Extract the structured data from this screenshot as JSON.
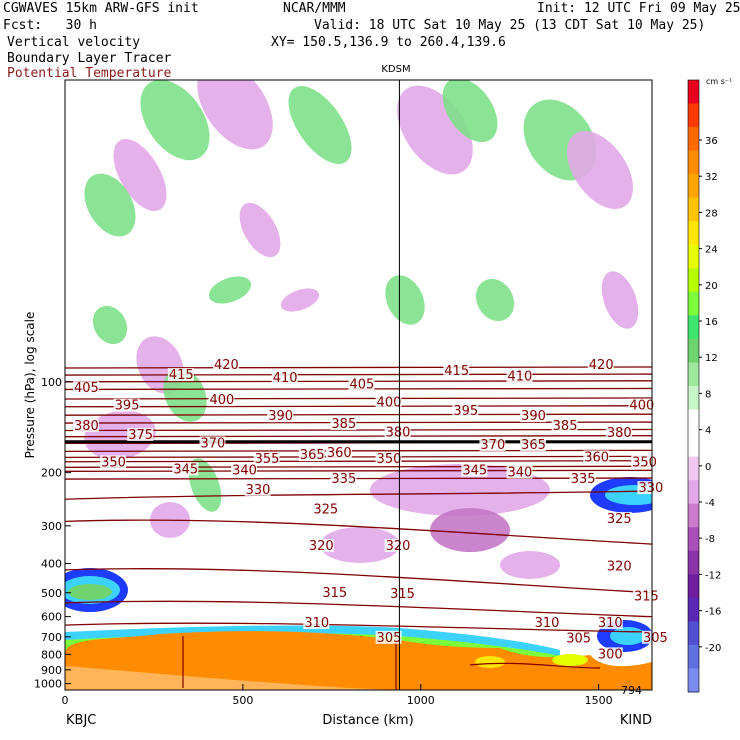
{
  "header": {
    "model": "CGWAVES 15km ARW-GFS init",
    "org": "NCAR/MMM",
    "init": "Init: 12 UTC Fri 09 May 25",
    "fcst": "Fcst:   30 h",
    "valid": "Valid: 18 UTC Sat 10 May 25 (13 CDT Sat 10 May 25)",
    "field1": "Vertical velocity",
    "field2": "Boundary Layer Tracer",
    "field3": "Potential Temperature",
    "xy": "XY= 150.5,136.9 to 260.4,139.6",
    "station_mid": "KDSM"
  },
  "colors": {
    "theta": "#800000",
    "terrain": "#ff8c00",
    "up_green": "#7ee08a",
    "down_lilac": "#e2a8e8"
  },
  "chart_data": {
    "type": "cross-section",
    "xlabel": "Distance (km)",
    "ylabel": "Pressure (hPa), log scale",
    "xlim": [
      0,
      1650
    ],
    "ylim": [
      1050,
      10
    ],
    "x_ticks": [
      "0",
      "500",
      "1000",
      "1500"
    ],
    "y_ticks": [
      "100",
      "200",
      "300",
      "400",
      "500",
      "600",
      "700",
      "800",
      "900",
      "1000"
    ],
    "left_station": "KBJC",
    "right_station": "KIND",
    "kdsm_x": 940,
    "corner_value": "794",
    "colorbar": {
      "unit": "cm s⁻¹",
      "labels": [
        "36",
        "32",
        "28",
        "24",
        "20",
        "16",
        "12",
        "8",
        "4",
        "0",
        "-4",
        "-8",
        "-12",
        "-16",
        "-20"
      ],
      "colors": [
        "#e8001e",
        "#ff3a00",
        "#ff6a00",
        "#ff8c00",
        "#ffa500",
        "#ffc400",
        "#ffe600",
        "#e6ff00",
        "#b8ff00",
        "#7cff3a",
        "#3ee66e",
        "#6fd46f",
        "#9ee89e",
        "#c8f5c8",
        "#ffffff",
        "#ffffff",
        "#f0c8f0",
        "#e2a8e8",
        "#cc7acc",
        "#a850b8",
        "#8a32a8",
        "#6f1ea0",
        "#5a28b4",
        "#5050d0",
        "#6070e0",
        "#7a8cf0"
      ]
    },
    "theta_labels": [
      {
        "v": "420",
        "x": 165,
        "p": 88
      },
      {
        "v": "415",
        "x": 115,
        "p": 95
      },
      {
        "v": "410",
        "x": 230,
        "p": 97
      },
      {
        "v": "405",
        "x": 10,
        "p": 105
      },
      {
        "v": "405",
        "x": 315,
        "p": 102
      },
      {
        "v": "400",
        "x": 160,
        "p": 115
      },
      {
        "v": "400",
        "x": 345,
        "p": 117
      },
      {
        "v": "395",
        "x": 55,
        "p": 120
      },
      {
        "v": "390",
        "x": 225,
        "p": 130
      },
      {
        "v": "385",
        "x": 295,
        "p": 138
      },
      {
        "v": "380",
        "x": 10,
        "p": 140
      },
      {
        "v": "380",
        "x": 355,
        "p": 147
      },
      {
        "v": "375",
        "x": 70,
        "p": 150
      },
      {
        "v": "370",
        "x": 150,
        "p": 160
      },
      {
        "v": "365",
        "x": 260,
        "p": 175
      },
      {
        "v": "360",
        "x": 290,
        "p": 172
      },
      {
        "v": "355",
        "x": 210,
        "p": 180
      },
      {
        "v": "350",
        "x": 40,
        "p": 185
      },
      {
        "v": "350",
        "x": 345,
        "p": 180
      },
      {
        "v": "345",
        "x": 120,
        "p": 195
      },
      {
        "v": "340",
        "x": 185,
        "p": 197
      },
      {
        "v": "335",
        "x": 295,
        "p": 210
      },
      {
        "v": "330",
        "x": 200,
        "p": 228
      },
      {
        "v": "325",
        "x": 275,
        "p": 265
      },
      {
        "v": "320",
        "x": 270,
        "p": 350
      },
      {
        "v": "320",
        "x": 355,
        "p": 350
      },
      {
        "v": "315",
        "x": 285,
        "p": 500
      },
      {
        "v": "315",
        "x": 360,
        "p": 505
      },
      {
        "v": "310",
        "x": 265,
        "p": 630
      },
      {
        "v": "305",
        "x": 345,
        "p": 705
      },
      {
        "v": "415",
        "x": 420,
        "p": 92
      },
      {
        "v": "410",
        "x": 490,
        "p": 96
      },
      {
        "v": "420",
        "x": 580,
        "p": 88
      },
      {
        "v": "395",
        "x": 430,
        "p": 125
      },
      {
        "v": "390",
        "x": 505,
        "p": 130
      },
      {
        "v": "385",
        "x": 540,
        "p": 140
      },
      {
        "v": "380",
        "x": 600,
        "p": 148
      },
      {
        "v": "400",
        "x": 625,
        "p": 120
      },
      {
        "v": "370",
        "x": 460,
        "p": 162
      },
      {
        "v": "365",
        "x": 505,
        "p": 162
      },
      {
        "v": "360",
        "x": 575,
        "p": 178
      },
      {
        "v": "350",
        "x": 628,
        "p": 185
      },
      {
        "v": "345",
        "x": 440,
        "p": 197
      },
      {
        "v": "340",
        "x": 490,
        "p": 200
      },
      {
        "v": "335",
        "x": 560,
        "p": 210
      },
      {
        "v": "330",
        "x": 635,
        "p": 225
      },
      {
        "v": "325",
        "x": 600,
        "p": 285
      },
      {
        "v": "320",
        "x": 600,
        "p": 410
      },
      {
        "v": "315",
        "x": 630,
        "p": 515
      },
      {
        "v": "310",
        "x": 520,
        "p": 630
      },
      {
        "v": "310",
        "x": 590,
        "p": 630
      },
      {
        "v": "305",
        "x": 555,
        "p": 710
      },
      {
        "v": "305",
        "x": 640,
        "p": 705
      },
      {
        "v": "300",
        "x": 590,
        "p": 800
      }
    ]
  }
}
